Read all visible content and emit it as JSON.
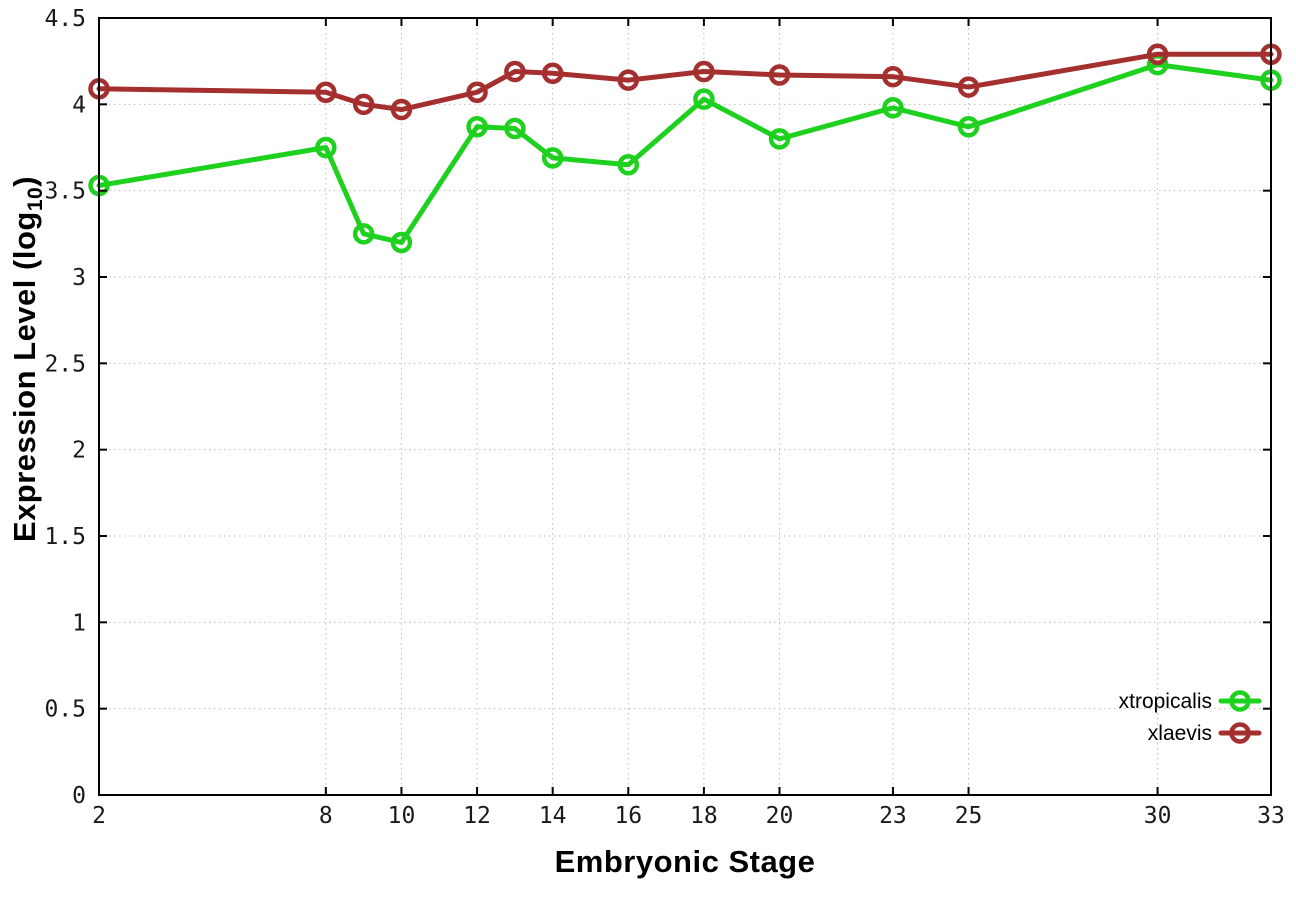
{
  "chart_data": {
    "type": "line",
    "title": "",
    "xlabel": "Embryonic Stage",
    "ylabel": "Expression Level (log10)",
    "ylabel_parts": {
      "main": "Expression Level (log",
      "sub": "10",
      "close": ")"
    },
    "x": [
      2,
      8,
      9,
      10,
      12,
      13,
      14,
      16,
      18,
      20,
      23,
      25,
      30,
      33
    ],
    "xticks": [
      2,
      8,
      10,
      12,
      14,
      16,
      18,
      20,
      23,
      25,
      30,
      33
    ],
    "yticks": [
      0,
      0.5,
      1,
      1.5,
      2,
      2.5,
      3,
      3.5,
      4,
      4.5
    ],
    "xlim": [
      2,
      33
    ],
    "ylim": [
      0,
      4.5
    ],
    "grid": true,
    "grid_style": "dotted",
    "legend_position": "inside-bottom-right",
    "marker": "open-circle",
    "series": [
      {
        "name": "xtropicalis",
        "color": "#1ed11e",
        "values": [
          3.53,
          3.75,
          3.25,
          3.2,
          3.87,
          3.86,
          3.69,
          3.65,
          4.03,
          3.8,
          3.98,
          3.87,
          4.23,
          4.14
        ]
      },
      {
        "name": "xlaevis",
        "color": "#a42f2f",
        "values": [
          4.09,
          4.07,
          4.0,
          3.97,
          4.07,
          4.19,
          4.18,
          4.14,
          4.19,
          4.17,
          4.16,
          4.1,
          4.29,
          4.29
        ]
      }
    ],
    "colors": {
      "axis": "#000000",
      "grid": "#bcbcbc",
      "tick_text": "#1a1a1a",
      "background": "#ffffff"
    }
  }
}
